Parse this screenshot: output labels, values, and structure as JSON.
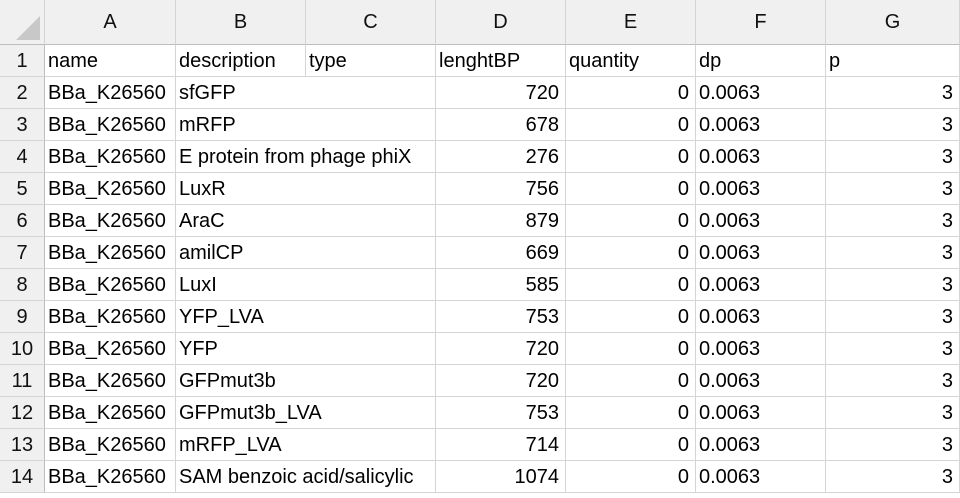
{
  "columns": [
    "A",
    "B",
    "C",
    "D",
    "E",
    "F",
    "G"
  ],
  "header_row": {
    "num": "1",
    "cells": [
      "name",
      "description",
      "type",
      "lenghtBP",
      "quantity",
      "dp",
      "p"
    ]
  },
  "rows": [
    {
      "num": "2",
      "name": "BBa_K26560",
      "description": "sfGFP",
      "type": "",
      "lenghtBP": "720",
      "quantity": "0",
      "dp": "0.0063",
      "p": "3"
    },
    {
      "num": "3",
      "name": "BBa_K26560",
      "description": "mRFP",
      "type": "",
      "lenghtBP": "678",
      "quantity": "0",
      "dp": "0.0063",
      "p": "3"
    },
    {
      "num": "4",
      "name": "BBa_K26560",
      "description": "E protein from phage phiX",
      "type": "",
      "lenghtBP": "276",
      "quantity": "0",
      "dp": "0.0063",
      "p": "3"
    },
    {
      "num": "5",
      "name": "BBa_K26560",
      "description": "LuxR",
      "type": "",
      "lenghtBP": "756",
      "quantity": "0",
      "dp": "0.0063",
      "p": "3"
    },
    {
      "num": "6",
      "name": "BBa_K26560",
      "description": "AraC",
      "type": "",
      "lenghtBP": "879",
      "quantity": "0",
      "dp": "0.0063",
      "p": "3"
    },
    {
      "num": "7",
      "name": "BBa_K26560",
      "description": "amilCP",
      "type": "",
      "lenghtBP": "669",
      "quantity": "0",
      "dp": "0.0063",
      "p": "3"
    },
    {
      "num": "8",
      "name": "BBa_K26560",
      "description": "LuxI",
      "type": "",
      "lenghtBP": "585",
      "quantity": "0",
      "dp": "0.0063",
      "p": "3"
    },
    {
      "num": "9",
      "name": "BBa_K26560",
      "description": "YFP_LVA",
      "type": "",
      "lenghtBP": "753",
      "quantity": "0",
      "dp": "0.0063",
      "p": "3"
    },
    {
      "num": "10",
      "name": "BBa_K26560",
      "description": "YFP",
      "type": "",
      "lenghtBP": "720",
      "quantity": "0",
      "dp": "0.0063",
      "p": "3"
    },
    {
      "num": "11",
      "name": "BBa_K26560",
      "description": "GFPmut3b",
      "type": "",
      "lenghtBP": "720",
      "quantity": "0",
      "dp": "0.0063",
      "p": "3"
    },
    {
      "num": "12",
      "name": "BBa_K26560",
      "description": "GFPmut3b_LVA",
      "type": "",
      "lenghtBP": "753",
      "quantity": "0",
      "dp": "0.0063",
      "p": "3"
    },
    {
      "num": "13",
      "name": "BBa_K26560",
      "description": "mRFP_LVA",
      "type": "",
      "lenghtBP": "714",
      "quantity": "0",
      "dp": "0.0063",
      "p": "3"
    },
    {
      "num": "14",
      "name": "BBa_K26560",
      "description": "SAM benzoic acid/salicylic",
      "type": "",
      "lenghtBP": "1074",
      "quantity": "0",
      "dp": "0.0063",
      "p": "3"
    }
  ]
}
